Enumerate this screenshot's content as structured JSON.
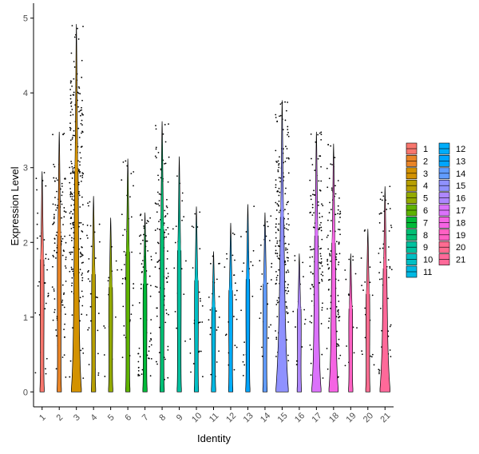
{
  "chart_data": {
    "type": "violin",
    "xlabel": "Identity",
    "ylabel": "Expression Level",
    "ylim": [
      -0.2,
      5.2
    ],
    "yticks": [
      0,
      1,
      2,
      3,
      4,
      5
    ],
    "grid": false,
    "legend_position": "right",
    "legend_columns": 2,
    "categories": [
      "1",
      "2",
      "3",
      "4",
      "5",
      "6",
      "7",
      "8",
      "9",
      "10",
      "11",
      "12",
      "13",
      "14",
      "15",
      "16",
      "17",
      "18",
      "19",
      "20",
      "21"
    ],
    "colors": [
      "#F8766D",
      "#E98427",
      "#D39200",
      "#B79F00",
      "#93AA00",
      "#5EB300",
      "#00BA38",
      "#00BF74",
      "#00C19F",
      "#00BFC4",
      "#00B9E3",
      "#00ADFA",
      "#00A5FF",
      "#619CFF",
      "#8F91FF",
      "#AE87FF",
      "#DB72FB",
      "#F564E3",
      "#FF61C3",
      "#FF6C91",
      "#FF6999"
    ],
    "series": [
      {
        "name": "1",
        "max": 2.95,
        "violin_peak": 0.03,
        "frac_expressed": 0.1
      },
      {
        "name": "2",
        "max": 3.48,
        "violin_peak": 0.03,
        "frac_expressed": 0.45
      },
      {
        "name": "3",
        "max": 4.92,
        "violin_peak": 0.4,
        "frac_expressed": 0.95
      },
      {
        "name": "4",
        "max": 2.62,
        "violin_peak": 0.03,
        "frac_expressed": 0.1
      },
      {
        "name": "5",
        "max": 2.33,
        "violin_peak": 0.03,
        "frac_expressed": 0.03
      },
      {
        "name": "6",
        "max": 3.12,
        "violin_peak": 0.03,
        "frac_expressed": 0.12
      },
      {
        "name": "7",
        "max": 2.4,
        "violin_peak": 0.03,
        "frac_expressed": 0.25
      },
      {
        "name": "8",
        "max": 3.62,
        "violin_peak": 0.03,
        "frac_expressed": 0.4
      },
      {
        "name": "9",
        "max": 3.15,
        "violin_peak": 0.03,
        "frac_expressed": 0.05
      },
      {
        "name": "10",
        "max": 2.48,
        "violin_peak": 0.03,
        "frac_expressed": 0.08
      },
      {
        "name": "11",
        "max": 1.88,
        "violin_peak": 0.03,
        "frac_expressed": 0.06
      },
      {
        "name": "12",
        "max": 2.26,
        "violin_peak": 0.03,
        "frac_expressed": 0.06
      },
      {
        "name": "13",
        "max": 2.51,
        "violin_peak": 0.03,
        "frac_expressed": 0.04
      },
      {
        "name": "14",
        "max": 2.4,
        "violin_peak": 0.03,
        "frac_expressed": 0.08
      },
      {
        "name": "15",
        "max": 3.9,
        "violin_peak": 0.55,
        "frac_expressed": 0.75
      },
      {
        "name": "16",
        "max": 1.85,
        "violin_peak": 0.03,
        "frac_expressed": 0.03
      },
      {
        "name": "17",
        "max": 3.48,
        "violin_peak": 0.35,
        "frac_expressed": 0.45
      },
      {
        "name": "18",
        "max": 3.32,
        "violin_peak": 0.35,
        "frac_expressed": 0.45
      },
      {
        "name": "19",
        "max": 1.85,
        "violin_peak": 0.03,
        "frac_expressed": 0.03
      },
      {
        "name": "20",
        "max": 2.18,
        "violin_peak": 0.03,
        "frac_expressed": 0.05
      },
      {
        "name": "21",
        "max": 2.75,
        "violin_peak": 0.4,
        "frac_expressed": 0.2
      }
    ]
  }
}
